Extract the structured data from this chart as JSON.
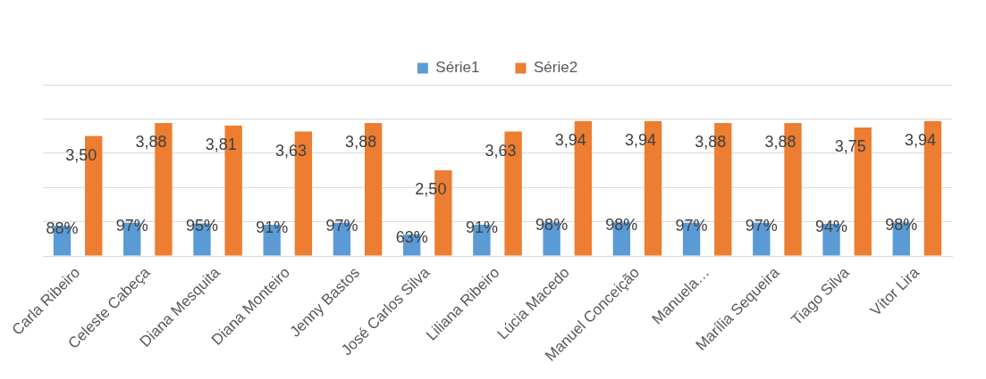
{
  "chart_data": {
    "type": "bar",
    "categories": [
      "Carla Ribeiro",
      "Celeste Cabeça",
      "Diana Mesquita",
      "Diana Monteiro",
      "Jenny Bastos",
      "José Carlos Silva",
      "Liliana Ribeiro",
      "Lúcia Macedo",
      "Manuel Conceição",
      "Manuela…",
      "Marília Sequeira",
      "Tiago Silva",
      "Vítor Lira"
    ],
    "series": [
      {
        "name": "Série1",
        "color": "#5b9bd5",
        "values": [
          0.88,
          0.97,
          0.95,
          0.91,
          0.97,
          0.63,
          0.91,
          0.98,
          0.98,
          0.97,
          0.97,
          0.94,
          0.98
        ],
        "value_labels": [
          "88%",
          "97%",
          "95%",
          "91%",
          "97%",
          "63%",
          "91%",
          "98%",
          "98%",
          "97%",
          "97%",
          "94%",
          "98%"
        ]
      },
      {
        "name": "Série2",
        "color": "#ed7d31",
        "values": [
          3.5,
          3.88,
          3.81,
          3.63,
          3.88,
          2.5,
          3.63,
          3.94,
          3.94,
          3.88,
          3.88,
          3.75,
          3.94
        ],
        "value_labels": [
          "3,50",
          "3,88",
          "3,81",
          "3,63",
          "3,88",
          "2,50",
          "3,63",
          "3,94",
          "3,94",
          "3,88",
          "3,88",
          "3,75",
          "3,94"
        ]
      }
    ],
    "ylim": [
      0,
      5
    ],
    "yticks": [
      {
        "value": 0,
        "label": null
      },
      {
        "value": 1,
        "label": null
      },
      {
        "value": 2,
        "label": null
      },
      {
        "value": 3,
        "label": null
      },
      {
        "value": 4,
        "label": null
      },
      {
        "value": 5,
        "label": null
      }
    ],
    "tick_labels": "x",
    "grid": "y",
    "legend": "top"
  }
}
